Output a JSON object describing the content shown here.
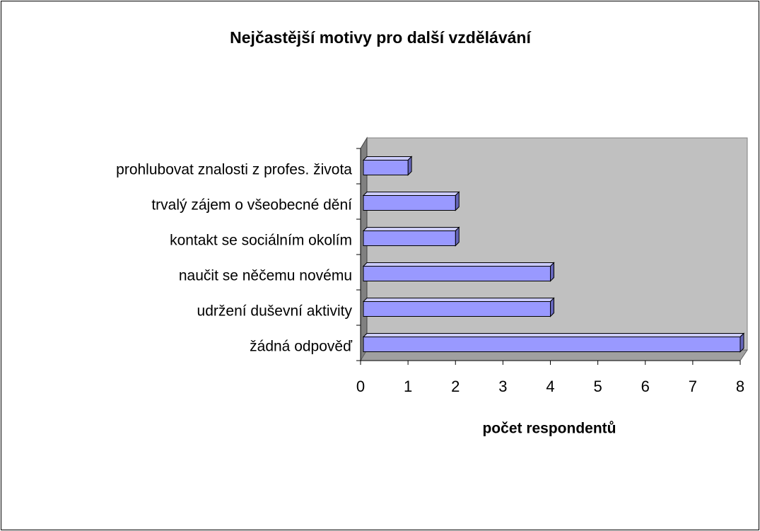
{
  "chart_data": {
    "type": "bar",
    "orientation": "horizontal",
    "title": "Nejčastější motivy pro další vzdělávání",
    "categories": [
      "prohlubovat znalosti z profes. života",
      "trvalý zájem o všeobecné dění",
      "kontakt se sociálním okolím",
      "naučit se něčemu novému",
      "udržení duševní aktivity",
      "žádná odpověď"
    ],
    "values": [
      1,
      2,
      2,
      4,
      4,
      8
    ],
    "color": "#9999ff",
    "xlabel": "počet respondentů",
    "xlim": [
      0,
      8
    ],
    "xticks": [
      0,
      1,
      2,
      3,
      4,
      5,
      6,
      7,
      8
    ],
    "grid": false
  }
}
